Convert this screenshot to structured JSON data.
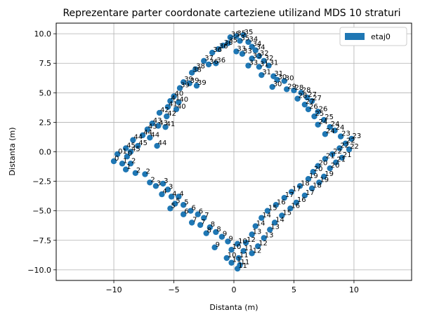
{
  "chart_data": {
    "type": "scatter",
    "title": "Reprezentare parter coordonate carteziene utilizand MDS 10 straturi",
    "xlabel": "Distanta (m)",
    "ylabel": "Distanta (m)",
    "xlim": [
      -14.8,
      14.8
    ],
    "ylim": [
      -10.9,
      10.9
    ],
    "xticks": [
      -10,
      -5,
      0,
      5,
      10
    ],
    "yticks": [
      -10.0,
      -7.5,
      -5.0,
      -2.5,
      0.0,
      2.5,
      5.0,
      7.5,
      10.0
    ],
    "xtick_labels": [
      "−10",
      "−5",
      "0",
      "5",
      "10"
    ],
    "ytick_labels": [
      "−10.0",
      "−7.5",
      "−5.0",
      "−2.5",
      "0.0",
      "2.5",
      "5.0",
      "7.5",
      "10.0"
    ],
    "grid": true,
    "legend_position": "top-right",
    "series": [
      {
        "name": "etaj0",
        "color": "#1f77b4",
        "points": [
          {
            "x": 0.8,
            "y": 9.9,
            "label": "35"
          },
          {
            "x": 0.2,
            "y": 9.8,
            "label": "35"
          },
          {
            "x": -0.3,
            "y": 9.7,
            "label": "35"
          },
          {
            "x": 0.5,
            "y": 9.4,
            "label": "35"
          },
          {
            "x": -0.5,
            "y": 9.2,
            "label": "35"
          },
          {
            "x": 1.2,
            "y": 9.3,
            "label": "34"
          },
          {
            "x": 1.5,
            "y": 8.9,
            "label": "34"
          },
          {
            "x": -0.9,
            "y": 9.0,
            "label": "36"
          },
          {
            "x": -1.3,
            "y": 8.7,
            "label": "36"
          },
          {
            "x": 1.8,
            "y": 8.6,
            "label": "34"
          },
          {
            "x": 0.2,
            "y": 8.5,
            "label": "33"
          },
          {
            "x": 0.7,
            "y": 8.3,
            "label": "33"
          },
          {
            "x": -1.8,
            "y": 8.4,
            "label": "36"
          },
          {
            "x": 2.1,
            "y": 8.1,
            "label": "32"
          },
          {
            "x": 2.5,
            "y": 7.7,
            "label": "32"
          },
          {
            "x": 1.5,
            "y": 7.9,
            "label": "33"
          },
          {
            "x": -2.5,
            "y": 7.7,
            "label": "37"
          },
          {
            "x": -2.1,
            "y": 7.4,
            "label": "36"
          },
          {
            "x": -1.5,
            "y": 7.5,
            "label": "36"
          },
          {
            "x": 1.2,
            "y": 7.3,
            "label": "33"
          },
          {
            "x": 2.9,
            "y": 7.3,
            "label": "31"
          },
          {
            "x": 2.1,
            "y": 7.2,
            "label": "31"
          },
          {
            "x": -3.2,
            "y": 7.0,
            "label": "38"
          },
          {
            "x": -3.5,
            "y": 6.7,
            "label": "38"
          },
          {
            "x": 2.3,
            "y": 6.5,
            "label": "31"
          },
          {
            "x": 3.3,
            "y": 6.4,
            "label": "31"
          },
          {
            "x": 3.6,
            "y": 6.1,
            "label": "30"
          },
          {
            "x": 4.2,
            "y": 6.0,
            "label": "30"
          },
          {
            "x": -4.2,
            "y": 5.9,
            "label": "39"
          },
          {
            "x": -3.7,
            "y": 5.8,
            "label": "39"
          },
          {
            "x": -3.1,
            "y": 5.6,
            "label": "39"
          },
          {
            "x": -4.5,
            "y": 5.4,
            "label": "39"
          },
          {
            "x": 3.2,
            "y": 5.5,
            "label": "30"
          },
          {
            "x": 4.4,
            "y": 5.3,
            "label": "29"
          },
          {
            "x": 5.0,
            "y": 5.2,
            "label": "28"
          },
          {
            "x": 5.6,
            "y": 5.0,
            "label": "28"
          },
          {
            "x": -5.0,
            "y": 4.7,
            "label": "40"
          },
          {
            "x": -5.3,
            "y": 4.3,
            "label": "41"
          },
          {
            "x": -4.6,
            "y": 4.2,
            "label": "40"
          },
          {
            "x": 5.3,
            "y": 4.5,
            "label": "28"
          },
          {
            "x": 6.1,
            "y": 4.6,
            "label": "27"
          },
          {
            "x": 6.5,
            "y": 4.3,
            "label": "27"
          },
          {
            "x": -5.5,
            "y": 3.8,
            "label": "41"
          },
          {
            "x": -4.8,
            "y": 3.6,
            "label": "40"
          },
          {
            "x": 5.9,
            "y": 4.0,
            "label": "27"
          },
          {
            "x": 6.2,
            "y": 3.6,
            "label": "26"
          },
          {
            "x": -6.2,
            "y": 3.3,
            "label": "42"
          },
          {
            "x": -5.6,
            "y": 3.0,
            "label": "42"
          },
          {
            "x": 7.0,
            "y": 3.4,
            "label": "26"
          },
          {
            "x": 6.7,
            "y": 3.0,
            "label": "25"
          },
          {
            "x": 7.5,
            "y": 2.7,
            "label": "25"
          },
          {
            "x": -6.8,
            "y": 2.4,
            "label": "43"
          },
          {
            "x": -6.3,
            "y": 2.2,
            "label": "43"
          },
          {
            "x": -5.7,
            "y": 2.1,
            "label": "41"
          },
          {
            "x": 7.0,
            "y": 2.3,
            "label": "24"
          },
          {
            "x": 8.0,
            "y": 2.1,
            "label": "24"
          },
          {
            "x": 8.4,
            "y": 1.8,
            "label": "24"
          },
          {
            "x": -7.2,
            "y": 1.9,
            "label": "43"
          },
          {
            "x": -7.6,
            "y": 1.4,
            "label": "44"
          },
          {
            "x": -7.0,
            "y": 1.2,
            "label": "44"
          },
          {
            "x": 7.6,
            "y": 1.5,
            "label": "24"
          },
          {
            "x": 8.9,
            "y": 1.3,
            "label": "23"
          },
          {
            "x": 9.8,
            "y": 1.1,
            "label": "23"
          },
          {
            "x": -8.4,
            "y": 1.0,
            "label": "44"
          },
          {
            "x": -6.4,
            "y": 0.5,
            "label": "44"
          },
          {
            "x": -8.0,
            "y": 0.5,
            "label": "45"
          },
          {
            "x": 9.3,
            "y": 0.7,
            "label": "22"
          },
          {
            "x": -9.0,
            "y": 0.3,
            "label": "45"
          },
          {
            "x": -8.6,
            "y": 0.0,
            "label": "45"
          },
          {
            "x": 8.8,
            "y": 0.3,
            "label": "22"
          },
          {
            "x": 9.6,
            "y": 0.2,
            "label": "22"
          },
          {
            "x": -9.7,
            "y": -0.2,
            "label": "01"
          },
          {
            "x": -8.9,
            "y": -0.4,
            "label": "0"
          },
          {
            "x": 8.2,
            "y": -0.2,
            "label": "22"
          },
          {
            "x": 9.0,
            "y": -0.5,
            "label": "21"
          },
          {
            "x": -10.0,
            "y": -0.8,
            "label": "0"
          },
          {
            "x": -9.3,
            "y": -1.0,
            "label": "1"
          },
          {
            "x": 7.6,
            "y": -0.6,
            "label": "21"
          },
          {
            "x": 8.5,
            "y": -0.9,
            "label": "21"
          },
          {
            "x": -8.6,
            "y": -1.0,
            "label": "2"
          },
          {
            "x": -9.0,
            "y": -1.5,
            "label": "1"
          },
          {
            "x": 7.0,
            "y": -1.2,
            "label": "20"
          },
          {
            "x": 8.0,
            "y": -1.4,
            "label": "20"
          },
          {
            "x": -8.2,
            "y": -1.8,
            "label": "2"
          },
          {
            "x": -7.4,
            "y": -1.9,
            "label": "2"
          },
          {
            "x": 6.6,
            "y": -1.7,
            "label": "20"
          },
          {
            "x": 7.5,
            "y": -2.1,
            "label": "19"
          },
          {
            "x": -7.0,
            "y": -2.6,
            "label": "2"
          },
          {
            "x": -6.5,
            "y": -2.9,
            "label": "3"
          },
          {
            "x": 6.2,
            "y": -2.3,
            "label": "19"
          },
          {
            "x": 7.1,
            "y": -2.6,
            "label": "19"
          },
          {
            "x": -5.9,
            "y": -2.7,
            "label": "3"
          },
          {
            "x": -5.5,
            "y": -3.2,
            "label": "3"
          },
          {
            "x": 5.5,
            "y": -2.9,
            "label": "18"
          },
          {
            "x": 6.5,
            "y": -3.1,
            "label": "18"
          },
          {
            "x": -6.0,
            "y": -3.6,
            "label": "4"
          },
          {
            "x": -5.2,
            "y": -3.8,
            "label": "4"
          },
          {
            "x": -4.6,
            "y": -3.8,
            "label": "4"
          },
          {
            "x": 4.8,
            "y": -3.4,
            "label": "17"
          },
          {
            "x": 5.9,
            "y": -3.7,
            "label": "17"
          },
          {
            "x": -4.9,
            "y": -4.4,
            "label": "5"
          },
          {
            "x": -4.2,
            "y": -4.5,
            "label": "5"
          },
          {
            "x": 4.2,
            "y": -3.9,
            "label": "17"
          },
          {
            "x": 5.2,
            "y": -4.3,
            "label": "16"
          },
          {
            "x": -5.3,
            "y": -4.8,
            "label": "5"
          },
          {
            "x": -3.6,
            "y": -5.0,
            "label": "6"
          },
          {
            "x": -4.2,
            "y": -5.3,
            "label": "6"
          },
          {
            "x": 3.5,
            "y": -4.5,
            "label": "16"
          },
          {
            "x": 4.7,
            "y": -4.8,
            "label": "16"
          },
          {
            "x": -3.0,
            "y": -5.3,
            "label": "6"
          },
          {
            "x": -2.5,
            "y": -5.6,
            "label": "7"
          },
          {
            "x": 2.8,
            "y": -5.0,
            "label": "15"
          },
          {
            "x": 4.0,
            "y": -5.4,
            "label": "15"
          },
          {
            "x": -3.5,
            "y": -6.0,
            "label": "7"
          },
          {
            "x": -2.8,
            "y": -6.2,
            "label": "7"
          },
          {
            "x": 2.3,
            "y": -5.6,
            "label": "14"
          },
          {
            "x": 3.4,
            "y": -6.0,
            "label": "14"
          },
          {
            "x": -2.0,
            "y": -6.4,
            "label": "8"
          },
          {
            "x": -1.5,
            "y": -6.8,
            "label": "8"
          },
          {
            "x": 1.8,
            "y": -6.3,
            "label": "14"
          },
          {
            "x": 3.0,
            "y": -6.6,
            "label": "13"
          },
          {
            "x": -2.3,
            "y": -6.9,
            "label": "8"
          },
          {
            "x": -1.0,
            "y": -7.2,
            "label": "9"
          },
          {
            "x": 1.5,
            "y": -7.0,
            "label": "13"
          },
          {
            "x": 2.5,
            "y": -7.3,
            "label": "13"
          },
          {
            "x": -0.5,
            "y": -7.6,
            "label": "9"
          },
          {
            "x": 0.3,
            "y": -7.8,
            "label": "10"
          },
          {
            "x": 1.0,
            "y": -7.7,
            "label": "12"
          },
          {
            "x": 2.0,
            "y": -8.0,
            "label": "12"
          },
          {
            "x": -1.6,
            "y": -8.1,
            "label": "9"
          },
          {
            "x": -0.2,
            "y": -8.3,
            "label": "10"
          },
          {
            "x": 0.8,
            "y": -8.4,
            "label": "11"
          },
          {
            "x": 1.5,
            "y": -8.6,
            "label": "12"
          },
          {
            "x": -0.6,
            "y": -9.0,
            "label": "10"
          },
          {
            "x": 0.4,
            "y": -9.0,
            "label": "11"
          },
          {
            "x": -0.2,
            "y": -9.4,
            "label": "11"
          },
          {
            "x": 0.5,
            "y": -9.6,
            "label": "11"
          },
          {
            "x": 0.3,
            "y": -9.9,
            "label": "11"
          }
        ]
      }
    ]
  }
}
